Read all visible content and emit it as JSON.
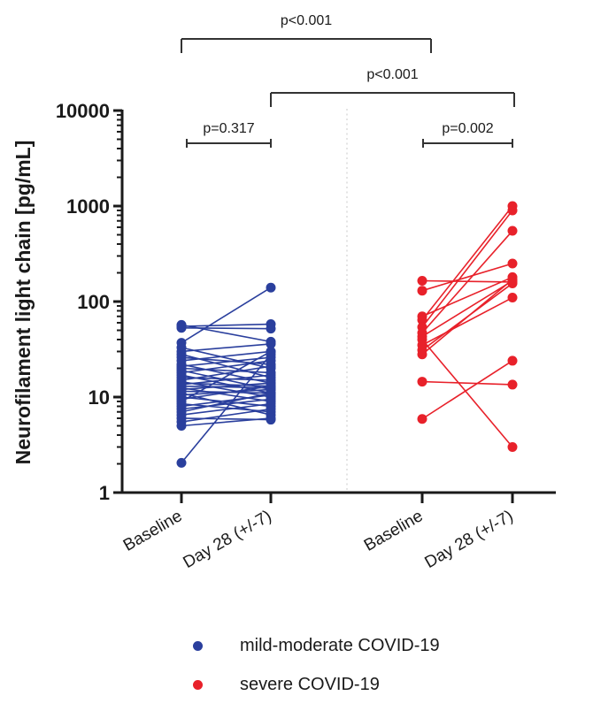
{
  "chart_data": {
    "type": "line",
    "subtype": "paired-points (before-after)",
    "title": "",
    "ylabel": "Neurofilament light chain [pg/mL]",
    "xlabel": "",
    "yscale": "log10",
    "ylim": [
      1,
      10000
    ],
    "yticks": [
      "1",
      "10",
      "100",
      "1000",
      "10000"
    ],
    "ytick_values": [
      1,
      10,
      100,
      1000,
      10000
    ],
    "categories": [
      "Baseline",
      "Day 28 (+/-7)",
      "Baseline",
      "Day 28 (+/-7)"
    ],
    "grid": false,
    "legend_position": "bottom",
    "series": [
      {
        "name": "mild-moderate COVID-19",
        "color": "#2a3f9d",
        "x_categories": [
          0,
          1
        ],
        "pairs": [
          [
            57,
            38
          ],
          [
            55,
            58
          ],
          [
            53,
            52
          ],
          [
            37,
            140
          ],
          [
            33,
            20
          ],
          [
            30,
            36
          ],
          [
            28,
            16
          ],
          [
            26,
            22
          ],
          [
            24,
            30
          ],
          [
            22,
            14
          ],
          [
            21,
            26
          ],
          [
            20,
            18
          ],
          [
            19,
            12
          ],
          [
            18,
            24
          ],
          [
            17,
            11
          ],
          [
            16,
            15
          ],
          [
            15,
            21
          ],
          [
            14.5,
            10
          ],
          [
            14,
            13
          ],
          [
            13.5,
            17
          ],
          [
            13,
            12.5
          ],
          [
            12.5,
            9
          ],
          [
            12,
            14
          ],
          [
            11.5,
            11
          ],
          [
            11,
            6.5
          ],
          [
            10.5,
            12
          ],
          [
            10,
            8
          ],
          [
            9.5,
            13
          ],
          [
            9,
            30
          ],
          [
            8.5,
            7
          ],
          [
            8,
            10.5
          ],
          [
            7.5,
            9.5
          ],
          [
            7,
            11
          ],
          [
            6.5,
            8.5
          ],
          [
            6,
            5.8
          ],
          [
            5.5,
            7.5
          ],
          [
            5,
            6
          ],
          [
            2.05,
            28
          ]
        ]
      },
      {
        "name": "severe COVID-19",
        "color": "#e8212a",
        "x_categories": [
          2,
          3
        ],
        "pairs": [
          [
            165,
            160
          ],
          [
            130,
            250
          ],
          [
            70,
            180
          ],
          [
            64,
            1000
          ],
          [
            54,
            900
          ],
          [
            47,
            550
          ],
          [
            43,
            165
          ],
          [
            40,
            3
          ],
          [
            35,
            110
          ],
          [
            31,
            155
          ],
          [
            28,
            170
          ],
          [
            14.5,
            13.5
          ],
          [
            5.9,
            24
          ]
        ]
      }
    ],
    "annotations": [
      {
        "label": "p=0.317",
        "between": [
          "mild-moderate Baseline",
          "mild-moderate Day 28 (+/-7)"
        ]
      },
      {
        "label": "p=0.002",
        "between": [
          "severe Baseline",
          "severe Day 28 (+/-7)"
        ]
      },
      {
        "label": "p<0.001",
        "between": [
          "mild-moderate Baseline",
          "severe Baseline"
        ]
      },
      {
        "label": "p<0.001",
        "between": [
          "mild-moderate Day 28 (+/-7)",
          "severe Day 28 (+/-7)"
        ]
      }
    ]
  },
  "legend": {
    "items": [
      {
        "label": "mild-moderate COVID-19",
        "color": "#2a3f9d"
      },
      {
        "label": "severe COVID-19",
        "color": "#e8212a"
      }
    ]
  }
}
